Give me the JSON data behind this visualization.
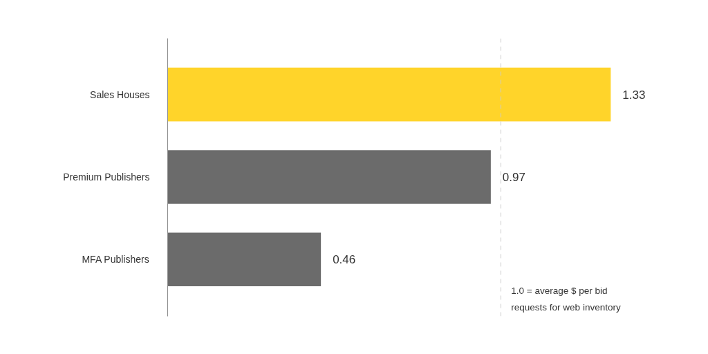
{
  "chart_data": {
    "type": "bar",
    "orientation": "horizontal",
    "categories": [
      "Sales Houses",
      "Premium Publishers",
      "MFA Publishers"
    ],
    "values": [
      1.33,
      0.97,
      0.46
    ],
    "colors": [
      "#ffd42a",
      "#6b6b6b",
      "#6b6b6b"
    ],
    "data_labels": true,
    "grid": false,
    "tick_labels": "y",
    "ref_lines": [
      {
        "axis": "x",
        "value": 1.0,
        "label": "1.0 = average $ per bid requests for web inventory",
        "color": "#cccccc",
        "line_style": "dashed"
      }
    ]
  }
}
